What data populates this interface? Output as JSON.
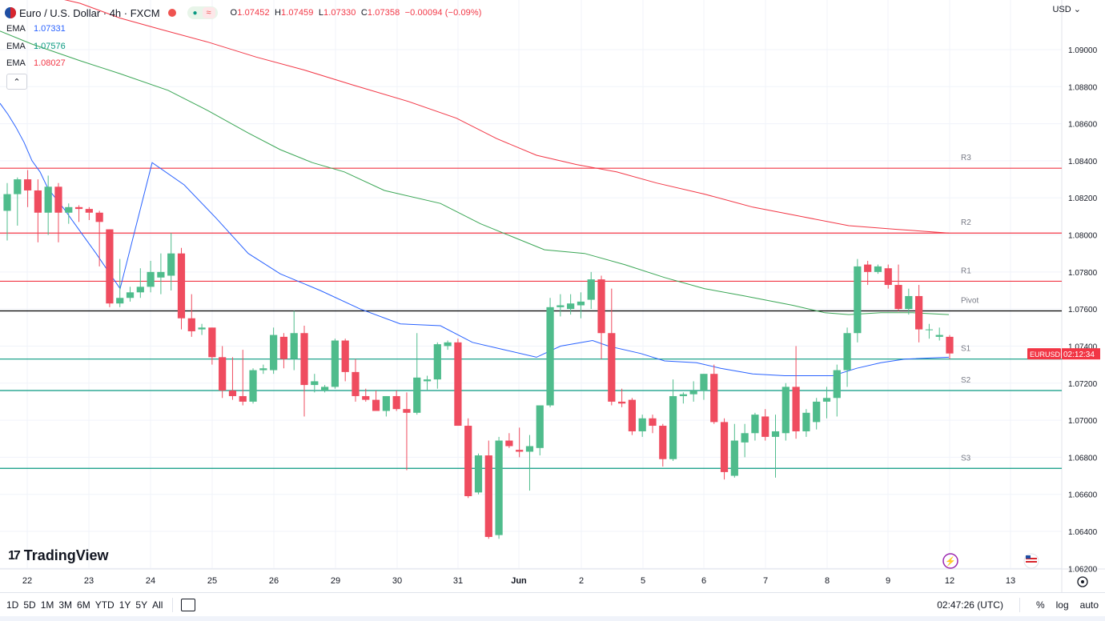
{
  "header": {
    "title": "Euro / U.S. Dollar · 4h · FXCM",
    "ohlc": {
      "o_label": "O",
      "o": "1.07452",
      "h_label": "H",
      "h": "1.07459",
      "l_label": "L",
      "l": "1.07330",
      "c_label": "C",
      "c": "1.07358",
      "change": "−0.00094 (−0.09%)"
    }
  },
  "indicators": [
    {
      "label": "EMA",
      "value": "1.07331",
      "color": "#2962ff"
    },
    {
      "label": "EMA",
      "value": "1.07576",
      "color": "#089981"
    },
    {
      "label": "EMA",
      "value": "1.08027",
      "color": "#f23645"
    }
  ],
  "currency": "USD",
  "brand": "TradingView",
  "price_axis": {
    "ticks": [
      "1.09000",
      "1.08800",
      "1.08600",
      "1.08400",
      "1.08200",
      "1.08000",
      "1.07800",
      "1.07600",
      "1.07400",
      "1.07200",
      "1.07000",
      "1.06800",
      "1.06600",
      "1.06400",
      "1.06200"
    ],
    "symbol_label": "EURUSD",
    "countdown": "02:12:34"
  },
  "time_axis": [
    "22",
    "23",
    "24",
    "25",
    "26",
    "29",
    "30",
    "31",
    "Jun",
    "2",
    "5",
    "6",
    "7",
    "8",
    "9",
    "12",
    "13"
  ],
  "bottom_bar": {
    "ranges": [
      "1D",
      "5D",
      "1M",
      "3M",
      "6M",
      "YTD",
      "1Y",
      "5Y",
      "All"
    ],
    "clock": "02:47:26 (UTC)",
    "percent": "%",
    "log": "log",
    "auto": "auto"
  },
  "chart_data": {
    "type": "candlestick",
    "symbol": "EURUSD",
    "interval": "4h",
    "price_range": [
      1.062,
      1.092
    ],
    "colors": {
      "up": "#4fbc8c",
      "down": "#ef4c5f"
    },
    "pivot_levels": [
      {
        "name": "R3",
        "value": 1.0836,
        "color": "#f23645"
      },
      {
        "name": "R2",
        "value": 1.0801,
        "color": "#f23645"
      },
      {
        "name": "R1",
        "value": 1.0775,
        "color": "#f23645"
      },
      {
        "name": "Pivot",
        "value": 1.0759,
        "color": "#000000"
      },
      {
        "name": "S1",
        "value": 1.0733,
        "color": "#089981"
      },
      {
        "name": "S2",
        "value": 1.0716,
        "color": "#089981"
      },
      {
        "name": "S3",
        "value": 1.0674,
        "color": "#089981"
      }
    ],
    "candles": [
      {
        "o": 1.0813,
        "h": 1.0828,
        "l": 1.0797,
        "c": 1.0822
      },
      {
        "o": 1.0822,
        "h": 1.0831,
        "l": 1.0805,
        "c": 1.083
      },
      {
        "o": 1.083,
        "h": 1.0835,
        "l": 1.0815,
        "c": 1.0824
      },
      {
        "o": 1.0824,
        "h": 1.083,
        "l": 1.0796,
        "c": 1.0812
      },
      {
        "o": 1.0812,
        "h": 1.0832,
        "l": 1.08,
        "c": 1.0826
      },
      {
        "o": 1.0826,
        "h": 1.0828,
        "l": 1.0796,
        "c": 1.0812
      },
      {
        "o": 1.0812,
        "h": 1.0817,
        "l": 1.0806,
        "c": 1.0815
      },
      {
        "o": 1.0815,
        "h": 1.0816,
        "l": 1.0807,
        "c": 1.0814
      },
      {
        "o": 1.0814,
        "h": 1.0815,
        "l": 1.0808,
        "c": 1.0812
      },
      {
        "o": 1.0812,
        "h": 1.0813,
        "l": 1.0783,
        "c": 1.0807
      },
      {
        "o": 1.0803,
        "h": 1.0803,
        "l": 1.0761,
        "c": 1.0763
      },
      {
        "o": 1.0763,
        "h": 1.0787,
        "l": 1.0761,
        "c": 1.0766
      },
      {
        "o": 1.0766,
        "h": 1.0772,
        "l": 1.0764,
        "c": 1.0769
      },
      {
        "o": 1.0769,
        "h": 1.0782,
        "l": 1.0766,
        "c": 1.0772
      },
      {
        "o": 1.0772,
        "h": 1.0786,
        "l": 1.0769,
        "c": 1.078
      },
      {
        "o": 1.0777,
        "h": 1.079,
        "l": 1.0768,
        "c": 1.078
      },
      {
        "o": 1.0778,
        "h": 1.0801,
        "l": 1.077,
        "c": 1.079
      },
      {
        "o": 1.079,
        "h": 1.0793,
        "l": 1.0749,
        "c": 1.0755
      },
      {
        "o": 1.0755,
        "h": 1.0768,
        "l": 1.0745,
        "c": 1.0748
      },
      {
        "o": 1.0749,
        "h": 1.0752,
        "l": 1.0746,
        "c": 1.075
      },
      {
        "o": 1.075,
        "h": 1.075,
        "l": 1.073,
        "c": 1.0734
      },
      {
        "o": 1.0734,
        "h": 1.074,
        "l": 1.0712,
        "c": 1.0716
      },
      {
        "o": 1.0716,
        "h": 1.0734,
        "l": 1.0711,
        "c": 1.0713
      },
      {
        "o": 1.0713,
        "h": 1.0738,
        "l": 1.0708,
        "c": 1.071
      },
      {
        "o": 1.071,
        "h": 1.0728,
        "l": 1.0709,
        "c": 1.0727
      },
      {
        "o": 1.0727,
        "h": 1.073,
        "l": 1.0725,
        "c": 1.0728
      },
      {
        "o": 1.0727,
        "h": 1.075,
        "l": 1.0725,
        "c": 1.0746
      },
      {
        "o": 1.0745,
        "h": 1.0747,
        "l": 1.0728,
        "c": 1.0733
      },
      {
        "o": 1.0733,
        "h": 1.0759,
        "l": 1.0727,
        "c": 1.0747
      },
      {
        "o": 1.0747,
        "h": 1.0751,
        "l": 1.0702,
        "c": 1.0719
      },
      {
        "o": 1.0719,
        "h": 1.0725,
        "l": 1.0715,
        "c": 1.0721
      },
      {
        "o": 1.0716,
        "h": 1.0719,
        "l": 1.0715,
        "c": 1.0718
      },
      {
        "o": 1.0718,
        "h": 1.0744,
        "l": 1.0717,
        "c": 1.0743
      },
      {
        "o": 1.0743,
        "h": 1.0744,
        "l": 1.0721,
        "c": 1.0726
      },
      {
        "o": 1.0726,
        "h": 1.0733,
        "l": 1.071,
        "c": 1.0713
      },
      {
        "o": 1.0713,
        "h": 1.0717,
        "l": 1.071,
        "c": 1.0711
      },
      {
        "o": 1.0711,
        "h": 1.0716,
        "l": 1.0705,
        "c": 1.0705
      },
      {
        "o": 1.0705,
        "h": 1.0713,
        "l": 1.0702,
        "c": 1.0713
      },
      {
        "o": 1.0713,
        "h": 1.0716,
        "l": 1.0705,
        "c": 1.0706
      },
      {
        "o": 1.0706,
        "h": 1.0715,
        "l": 1.0673,
        "c": 1.0704
      },
      {
        "o": 1.0704,
        "h": 1.0747,
        "l": 1.0703,
        "c": 1.0723
      },
      {
        "o": 1.0721,
        "h": 1.0724,
        "l": 1.0716,
        "c": 1.0722
      },
      {
        "o": 1.0722,
        "h": 1.0742,
        "l": 1.0717,
        "c": 1.0741
      },
      {
        "o": 1.074,
        "h": 1.0743,
        "l": 1.0738,
        "c": 1.0742
      },
      {
        "o": 1.0742,
        "h": 1.0744,
        "l": 1.0697,
        "c": 1.0697
      },
      {
        "o": 1.0697,
        "h": 1.0701,
        "l": 1.0658,
        "c": 1.0659
      },
      {
        "o": 1.0661,
        "h": 1.0682,
        "l": 1.066,
        "c": 1.0681
      },
      {
        "o": 1.0681,
        "h": 1.0689,
        "l": 1.0636,
        "c": 1.0637
      },
      {
        "o": 1.0638,
        "h": 1.0691,
        "l": 1.0636,
        "c": 1.0689
      },
      {
        "o": 1.0689,
        "h": 1.0693,
        "l": 1.0685,
        "c": 1.0686
      },
      {
        "o": 1.0684,
        "h": 1.0696,
        "l": 1.068,
        "c": 1.0683
      },
      {
        "o": 1.0683,
        "h": 1.0692,
        "l": 1.0662,
        "c": 1.0686
      },
      {
        "o": 1.0685,
        "h": 1.0707,
        "l": 1.0681,
        "c": 1.0708
      },
      {
        "o": 1.0708,
        "h": 1.0766,
        "l": 1.0707,
        "c": 1.0761
      },
      {
        "o": 1.0761,
        "h": 1.0768,
        "l": 1.0756,
        "c": 1.0762
      },
      {
        "o": 1.076,
        "h": 1.0768,
        "l": 1.0757,
        "c": 1.0763
      },
      {
        "o": 1.0762,
        "h": 1.0769,
        "l": 1.0755,
        "c": 1.0764
      },
      {
        "o": 1.0765,
        "h": 1.078,
        "l": 1.076,
        "c": 1.0776
      },
      {
        "o": 1.0776,
        "h": 1.0778,
        "l": 1.0733,
        "c": 1.0747
      },
      {
        "o": 1.0747,
        "h": 1.0771,
        "l": 1.0708,
        "c": 1.071
      },
      {
        "o": 1.071,
        "h": 1.0717,
        "l": 1.0707,
        "c": 1.0709
      },
      {
        "o": 1.0711,
        "h": 1.0712,
        "l": 1.0692,
        "c": 1.0694
      },
      {
        "o": 1.0694,
        "h": 1.0703,
        "l": 1.0691,
        "c": 1.0701
      },
      {
        "o": 1.0701,
        "h": 1.0703,
        "l": 1.0693,
        "c": 1.0697
      },
      {
        "o": 1.0697,
        "h": 1.0698,
        "l": 1.0675,
        "c": 1.0679
      },
      {
        "o": 1.0679,
        "h": 1.0722,
        "l": 1.0678,
        "c": 1.0713
      },
      {
        "o": 1.0713,
        "h": 1.0715,
        "l": 1.0709,
        "c": 1.0714
      },
      {
        "o": 1.0714,
        "h": 1.0721,
        "l": 1.071,
        "c": 1.0716
      },
      {
        "o": 1.0716,
        "h": 1.0725,
        "l": 1.0711,
        "c": 1.0725
      },
      {
        "o": 1.0725,
        "h": 1.073,
        "l": 1.0698,
        "c": 1.0699
      },
      {
        "o": 1.0699,
        "h": 1.0701,
        "l": 1.0668,
        "c": 1.0672
      },
      {
        "o": 1.067,
        "h": 1.0698,
        "l": 1.0669,
        "c": 1.0689
      },
      {
        "o": 1.0688,
        "h": 1.0698,
        "l": 1.068,
        "c": 1.0693
      },
      {
        "o": 1.0693,
        "h": 1.0704,
        "l": 1.0689,
        "c": 1.0703
      },
      {
        "o": 1.0702,
        "h": 1.0706,
        "l": 1.0689,
        "c": 1.0691
      },
      {
        "o": 1.0691,
        "h": 1.0703,
        "l": 1.0669,
        "c": 1.0694
      },
      {
        "o": 1.0693,
        "h": 1.072,
        "l": 1.0689,
        "c": 1.0718
      },
      {
        "o": 1.0718,
        "h": 1.074,
        "l": 1.069,
        "c": 1.0694
      },
      {
        "o": 1.0694,
        "h": 1.0706,
        "l": 1.0691,
        "c": 1.0704
      },
      {
        "o": 1.0699,
        "h": 1.0712,
        "l": 1.0695,
        "c": 1.071
      },
      {
        "o": 1.071,
        "h": 1.0718,
        "l": 1.0701,
        "c": 1.0712
      },
      {
        "o": 1.0712,
        "h": 1.073,
        "l": 1.0702,
        "c": 1.0727
      },
      {
        "o": 1.0727,
        "h": 1.075,
        "l": 1.0718,
        "c": 1.0747
      },
      {
        "o": 1.0747,
        "h": 1.0787,
        "l": 1.0742,
        "c": 1.0783
      },
      {
        "o": 1.0784,
        "h": 1.0786,
        "l": 1.0773,
        "c": 1.078
      },
      {
        "o": 1.078,
        "h": 1.0784,
        "l": 1.0779,
        "c": 1.0783
      },
      {
        "o": 1.0782,
        "h": 1.0784,
        "l": 1.0771,
        "c": 1.0773
      },
      {
        "o": 1.0773,
        "h": 1.0784,
        "l": 1.0759,
        "c": 1.076
      },
      {
        "o": 1.076,
        "h": 1.0771,
        "l": 1.0757,
        "c": 1.0767
      },
      {
        "o": 1.0767,
        "h": 1.0773,
        "l": 1.0742,
        "c": 1.0749
      },
      {
        "o": 1.0749,
        "h": 1.0752,
        "l": 1.0744,
        "c": 1.0749
      },
      {
        "o": 1.0745,
        "h": 1.075,
        "l": 1.0743,
        "c": 1.0746
      },
      {
        "o": 1.0745,
        "h": 1.0746,
        "l": 1.0733,
        "c": 1.0736
      }
    ],
    "ema_blue": [
      [
        0,
        1.0871
      ],
      [
        10,
        1.0865
      ],
      [
        20,
        1.0858
      ],
      [
        30,
        1.085
      ],
      [
        40,
        1.084
      ],
      [
        50,
        1.0834
      ],
      [
        60,
        1.0825
      ],
      [
        80,
        1.0814
      ],
      [
        100,
        1.0802
      ],
      [
        120,
        1.079
      ],
      [
        150,
        1.0771
      ],
      [
        190,
        1.0839
      ],
      [
        230,
        1.0827
      ],
      [
        270,
        1.0809
      ],
      [
        310,
        1.079
      ],
      [
        350,
        1.0779
      ],
      [
        400,
        1.077
      ],
      [
        450,
        1.076
      ],
      [
        500,
        1.0752
      ],
      [
        550,
        1.0751
      ],
      [
        590,
        1.0742
      ],
      [
        630,
        1.0738
      ],
      [
        670,
        1.0734
      ],
      [
        700,
        1.074
      ],
      [
        740,
        1.0743
      ],
      [
        760,
        1.074
      ],
      [
        800,
        1.0736
      ],
      [
        830,
        1.0732
      ],
      [
        870,
        1.0731
      ],
      [
        900,
        1.0728
      ],
      [
        940,
        1.0725
      ],
      [
        980,
        1.0724
      ],
      [
        1010,
        1.0724
      ],
      [
        1040,
        1.0724
      ],
      [
        1070,
        1.0728
      ],
      [
        1100,
        1.0731
      ],
      [
        1130,
        1.0733
      ],
      [
        1185,
        1.0734
      ]
    ],
    "ema_green": [
      [
        0,
        1.091
      ],
      [
        40,
        1.0903
      ],
      [
        100,
        1.0894
      ],
      [
        150,
        1.0887
      ],
      [
        210,
        1.0878
      ],
      [
        260,
        1.0867
      ],
      [
        310,
        1.0855
      ],
      [
        350,
        1.0846
      ],
      [
        390,
        1.0839
      ],
      [
        430,
        1.0834
      ],
      [
        480,
        1.0824
      ],
      [
        550,
        1.0817
      ],
      [
        600,
        1.0806
      ],
      [
        640,
        1.0799
      ],
      [
        680,
        1.0792
      ],
      [
        730,
        1.079
      ],
      [
        780,
        1.0784
      ],
      [
        830,
        1.0777
      ],
      [
        880,
        1.0771
      ],
      [
        930,
        1.0767
      ],
      [
        990,
        1.0762
      ],
      [
        1030,
        1.0758
      ],
      [
        1060,
        1.0757
      ],
      [
        1100,
        1.0758
      ],
      [
        1140,
        1.0758
      ],
      [
        1185,
        1.0757
      ]
    ],
    "ema_red": [
      [
        0,
        1.0934
      ],
      [
        50,
        1.093
      ],
      [
        100,
        1.0925
      ],
      [
        150,
        1.0917
      ],
      [
        200,
        1.0911
      ],
      [
        260,
        1.0904
      ],
      [
        320,
        1.0896
      ],
      [
        380,
        1.0889
      ],
      [
        440,
        1.0881
      ],
      [
        510,
        1.0872
      ],
      [
        570,
        1.0863
      ],
      [
        620,
        1.0852
      ],
      [
        670,
        1.0843
      ],
      [
        720,
        1.0838
      ],
      [
        770,
        1.0834
      ],
      [
        820,
        1.0828
      ],
      [
        880,
        1.0822
      ],
      [
        940,
        1.0815
      ],
      [
        1000,
        1.081
      ],
      [
        1060,
        1.0805
      ],
      [
        1120,
        1.0803
      ],
      [
        1185,
        1.0801
      ]
    ]
  }
}
